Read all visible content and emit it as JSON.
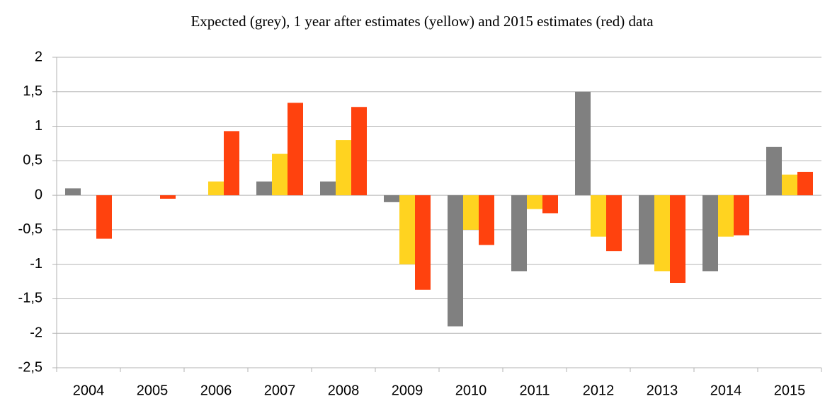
{
  "chart_data": {
    "type": "bar",
    "title": "Expected (grey), 1 year after estimates (yellow) and 2015 estimates (red) data",
    "categories": [
      "2004",
      "2005",
      "2006",
      "2007",
      "2008",
      "2009",
      "2010",
      "2011",
      "2012",
      "2013",
      "2014",
      "2015"
    ],
    "series": [
      {
        "color": "#808080",
        "values": [
          0.1,
          0,
          0,
          0.2,
          0.2,
          -0.1,
          -1.9,
          -1.1,
          1.5,
          -1.0,
          -1.1,
          0.7
        ]
      },
      {
        "color": "#ffd320",
        "values": [
          0,
          0,
          0.2,
          0.6,
          0.8,
          -1.0,
          -0.5,
          -0.2,
          -0.6,
          -1.1,
          -0.6,
          0.3
        ]
      },
      {
        "color": "#ff420e",
        "values": [
          -0.63,
          -0.05,
          0.93,
          1.34,
          1.28,
          -1.37,
          -0.72,
          -0.26,
          -0.81,
          -1.27,
          -0.58,
          0.34
        ]
      }
    ],
    "ylim": [
      -2.5,
      2
    ],
    "yticks": [
      {
        "value": -2.5,
        "label": "-2,5"
      },
      -2,
      {
        "value": -1.5,
        "label": "-1,5"
      },
      -1,
      {
        "value": -0.5,
        "label": "-0,5"
      },
      0,
      {
        "value": 0.5,
        "label": "0,5"
      },
      1,
      {
        "value": 1.5,
        "label": "1,5"
      },
      2
    ],
    "grid": true
  }
}
